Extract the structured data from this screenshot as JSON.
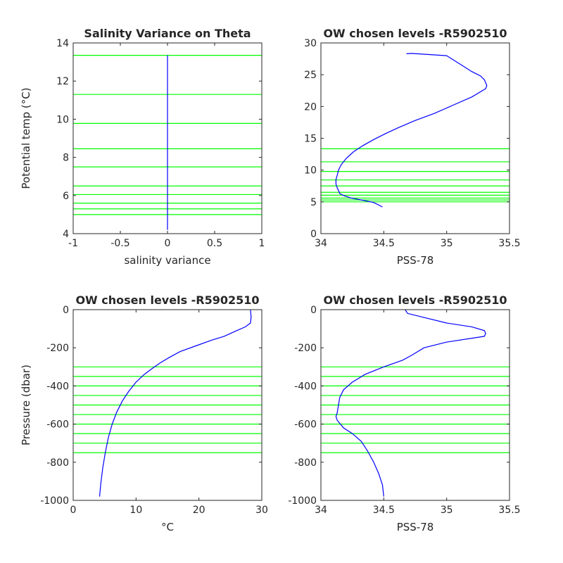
{
  "figure": {
    "background": "#ffffff",
    "axes_color": "#262626",
    "profile_color": "#0000ff",
    "level_color": "#00ff00"
  },
  "chart_data": [
    {
      "type": "line",
      "title": "Salinity Variance on Theta",
      "xlabel": "salinity variance",
      "ylabel": "Potential temp (°C)",
      "xlim": [
        -1,
        1
      ],
      "ylim": [
        4,
        14
      ],
      "xticks": [
        "-1",
        "-0.5",
        "0",
        "0.5",
        "1"
      ],
      "yticks": [
        "4",
        "6",
        "8",
        "10",
        "12",
        "14"
      ],
      "xtick_values": [
        -1,
        -0.5,
        0,
        0.5,
        1
      ],
      "ytick_values": [
        4,
        6,
        8,
        10,
        12,
        14
      ],
      "series": [
        {
          "x": [
            0,
            0
          ],
          "y": [
            4.2,
            13.35
          ]
        }
      ],
      "hlines": [
        13.35,
        11.3,
        9.78,
        8.45,
        7.5,
        6.5,
        6.05,
        5.6,
        5.3,
        5.0
      ]
    },
    {
      "type": "line",
      "title": "OW chosen levels -R5902510",
      "xlabel": "PSS-78",
      "ylabel": "",
      "xlim": [
        34,
        35.5
      ],
      "ylim": [
        0,
        30
      ],
      "xticks": [
        "34",
        "34.5",
        "35",
        "35.5"
      ],
      "yticks": [
        "0",
        "5",
        "10",
        "15",
        "20",
        "25",
        "30"
      ],
      "xtick_values": [
        34,
        34.5,
        35,
        35.5
      ],
      "ytick_values": [
        0,
        5,
        10,
        15,
        20,
        25,
        30
      ],
      "series": [
        {
          "x": [
            34.68,
            34.72,
            35.0,
            35.12,
            35.2,
            35.27,
            35.3,
            35.32,
            35.31,
            35.2,
            35.05,
            34.9,
            34.75,
            34.62,
            34.52,
            34.42,
            34.33,
            34.26,
            34.2,
            34.16,
            34.14,
            34.13,
            34.12,
            34.12,
            34.13,
            34.14,
            34.15,
            34.18,
            34.24,
            34.32,
            34.42,
            34.49
          ],
          "y": [
            28.3,
            28.35,
            28.0,
            26.5,
            25.5,
            24.8,
            24.2,
            23.3,
            22.8,
            21.5,
            20.2,
            18.9,
            17.8,
            16.7,
            15.8,
            14.8,
            13.8,
            12.9,
            11.8,
            10.8,
            10.0,
            9.2,
            8.5,
            7.8,
            7.2,
            6.8,
            6.3,
            6.0,
            5.6,
            5.3,
            4.9,
            4.2
          ]
        }
      ],
      "hlines": [
        13.35,
        11.3,
        9.78,
        8.45,
        7.5,
        6.5,
        6.05,
        5.6,
        5.3,
        5.0
      ]
    },
    {
      "type": "line",
      "title": "OW chosen levels -R5902510",
      "xlabel": "°C",
      "ylabel": "Pressure (dbar)",
      "xlim": [
        0,
        30
      ],
      "ylim": [
        -1000,
        0
      ],
      "xticks": [
        "0",
        "10",
        "20",
        "30"
      ],
      "yticks": [
        "-1000",
        "-800",
        "-600",
        "-400",
        "-200",
        "0"
      ],
      "xtick_values": [
        0,
        10,
        20,
        30
      ],
      "ytick_values": [
        -1000,
        -800,
        -600,
        -400,
        -200,
        0
      ],
      "series": [
        {
          "x": [
            28.2,
            28.3,
            28.2,
            27.4,
            26.0,
            24.0,
            22.0,
            19.5,
            17.0,
            15.3,
            13.8,
            12.5,
            11.3,
            10.0,
            8.8,
            7.8,
            6.9,
            6.2,
            5.6,
            5.1,
            4.7,
            4.4,
            4.2
          ],
          "y": [
            0,
            -40,
            -70,
            -90,
            -110,
            -140,
            -160,
            -190,
            -220,
            -250,
            -280,
            -310,
            -340,
            -380,
            -430,
            -480,
            -540,
            -600,
            -670,
            -750,
            -830,
            -910,
            -980
          ]
        }
      ],
      "hlines": [
        -300,
        -350,
        -400,
        -450,
        -500,
        -550,
        -600,
        -650,
        -700,
        -750
      ]
    },
    {
      "type": "line",
      "title": "OW chosen levels -R5902510",
      "xlabel": "PSS-78",
      "ylabel": "",
      "xlim": [
        34,
        35.5
      ],
      "ylim": [
        -1000,
        0
      ],
      "xticks": [
        "34",
        "34.5",
        "35",
        "35.5"
      ],
      "yticks": [
        "-1000",
        "-800",
        "-600",
        "-400",
        "-200",
        "0"
      ],
      "xtick_values": [
        34,
        34.5,
        35,
        35.5
      ],
      "ytick_values": [
        -1000,
        -800,
        -600,
        -400,
        -200,
        0
      ],
      "series": [
        {
          "x": [
            34.67,
            34.69,
            35.0,
            35.2,
            35.3,
            35.31,
            35.3,
            35.0,
            34.82,
            34.72,
            34.65,
            34.5,
            34.35,
            34.25,
            34.18,
            34.15,
            34.14,
            34.13,
            34.12,
            34.13,
            34.18,
            34.25,
            34.32,
            34.37,
            34.42,
            34.46,
            34.49,
            34.5
          ],
          "y": [
            0,
            -20,
            -70,
            -90,
            -110,
            -125,
            -140,
            -170,
            -200,
            -240,
            -265,
            -300,
            -340,
            -380,
            -420,
            -460,
            -500,
            -540,
            -560,
            -580,
            -620,
            -650,
            -690,
            -740,
            -800,
            -860,
            -920,
            -980
          ]
        }
      ],
      "hlines": [
        -300,
        -350,
        -400,
        -450,
        -500,
        -550,
        -600,
        -650,
        -700,
        -750
      ]
    }
  ]
}
